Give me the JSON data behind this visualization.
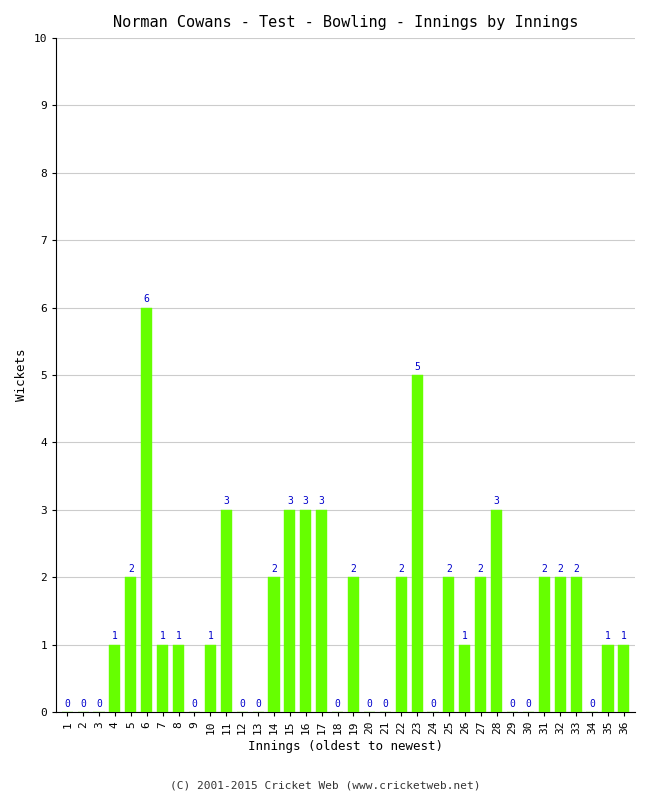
{
  "title": "Norman Cowans - Test - Bowling - Innings by Innings",
  "xlabel": "Innings (oldest to newest)",
  "ylabel": "Wickets",
  "bar_color": "#66ff00",
  "bar_edge_color": "#66ff00",
  "label_color": "#0000cc",
  "background_color": "#ffffff",
  "grid_color": "#cccccc",
  "ylim": [
    0,
    10
  ],
  "yticks": [
    0,
    1,
    2,
    3,
    4,
    5,
    6,
    7,
    8,
    9,
    10
  ],
  "innings": [
    1,
    2,
    3,
    4,
    5,
    6,
    7,
    8,
    9,
    10,
    11,
    12,
    13,
    14,
    15,
    16,
    17,
    18,
    19,
    20,
    21,
    22,
    23,
    24,
    25,
    26,
    27,
    28,
    29,
    30,
    31,
    32,
    33,
    34,
    35,
    36
  ],
  "wickets": [
    0,
    0,
    0,
    1,
    2,
    6,
    1,
    1,
    0,
    1,
    3,
    0,
    0,
    2,
    3,
    3,
    3,
    0,
    2,
    0,
    0,
    2,
    5,
    0,
    2,
    1,
    2,
    3,
    0,
    0,
    2,
    2,
    2,
    0,
    1,
    1
  ],
  "footer": "(C) 2001-2015 Cricket Web (www.cricketweb.net)",
  "title_fontsize": 11,
  "axis_label_fontsize": 9,
  "tick_fontsize": 8,
  "value_label_fontsize": 7,
  "footer_fontsize": 8
}
